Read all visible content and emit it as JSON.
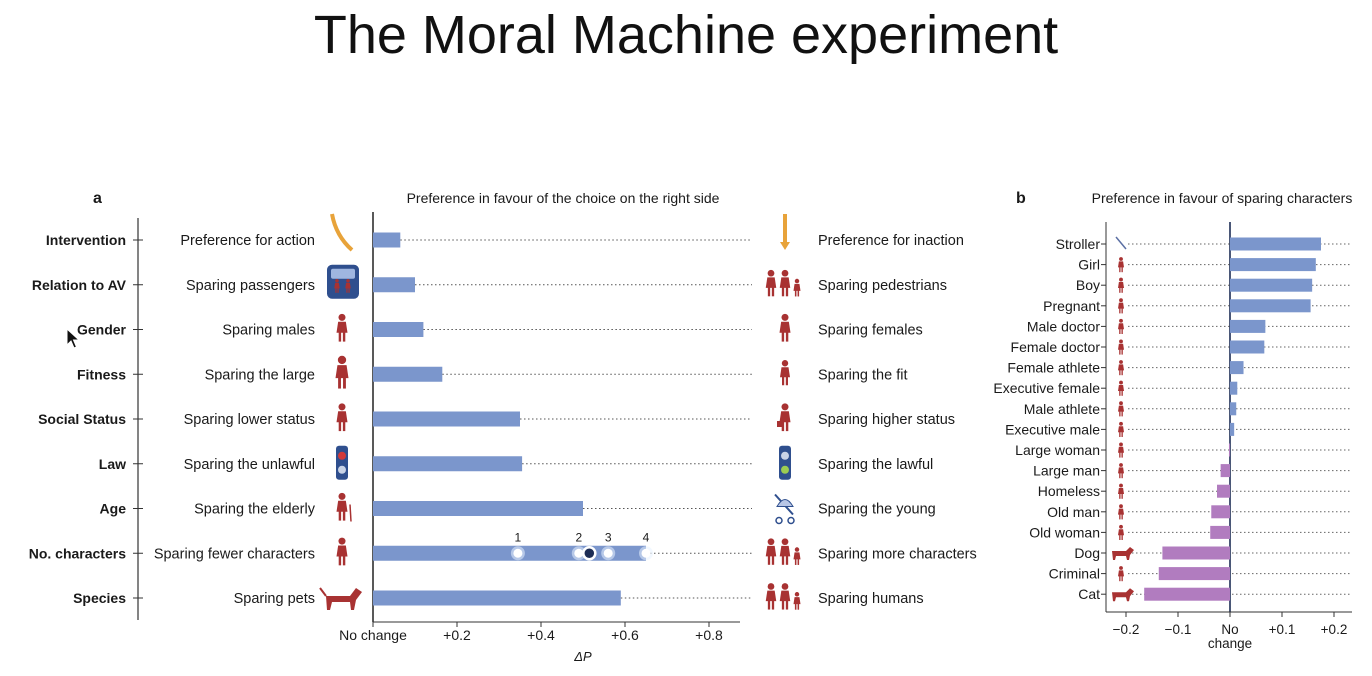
{
  "title": "The Moral Machine experiment",
  "chart_data": [
    {
      "type": "bar",
      "panel_label": "a",
      "title": "Preference in favour of the choice on the right side",
      "xlabel": "ΔP",
      "xlim": [
        0,
        0.9
      ],
      "ticks": [
        {
          "value": 0,
          "label": "No change"
        },
        {
          "value": 0.2,
          "label": "+0.2"
        },
        {
          "value": 0.4,
          "label": "+0.4"
        },
        {
          "value": 0.6,
          "label": "+0.6"
        },
        {
          "value": 0.8,
          "label": "+0.8"
        }
      ],
      "rows": [
        {
          "attribute": "Intervention",
          "left": "Preference for action",
          "right": "Preference for inaction",
          "value": 0.065
        },
        {
          "attribute": "Relation to AV",
          "left": "Sparing passengers",
          "right": "Sparing pedestrians",
          "value": 0.1
        },
        {
          "attribute": "Gender",
          "left": "Sparing males",
          "right": "Sparing females",
          "value": 0.12
        },
        {
          "attribute": "Fitness",
          "left": "Sparing the large",
          "right": "Sparing the fit",
          "value": 0.165
        },
        {
          "attribute": "Social Status",
          "left": "Sparing lower status",
          "right": "Sparing higher status",
          "value": 0.35
        },
        {
          "attribute": "Law",
          "left": "Sparing the unlawful",
          "right": "Sparing the lawful",
          "value": 0.355
        },
        {
          "attribute": "Age",
          "left": "Sparing the elderly",
          "right": "Sparing the young",
          "value": 0.5
        },
        {
          "attribute": "No. characters",
          "left": "Sparing fewer characters",
          "right": "Sparing more characters",
          "value": 0.65,
          "markers": [
            {
              "label": "1",
              "value": 0.345
            },
            {
              "label": "2",
              "value": 0.49
            },
            {
              "label": "",
              "value": 0.515
            },
            {
              "label": "3",
              "value": 0.56
            },
            {
              "label": "4",
              "value": 0.65
            }
          ]
        },
        {
          "attribute": "Species",
          "left": "Sparing pets",
          "right": "Sparing humans",
          "value": 0.59
        }
      ]
    },
    {
      "type": "bar",
      "panel_label": "b",
      "title": "Preference in favour of sparing characters",
      "xlim": [
        -0.22,
        0.22
      ],
      "ticks": [
        {
          "value": -0.2,
          "label": "−0.2"
        },
        {
          "value": -0.1,
          "label": "−0.1"
        },
        {
          "value": 0,
          "label": "No"
        },
        {
          "value": 0.1,
          "label": "+0.1"
        },
        {
          "value": 0.2,
          "label": "+0.2"
        }
      ],
      "zero_second_line": "change",
      "colors": {
        "positive": "#7b96cc",
        "negative": "#b17cbf"
      },
      "characters": [
        {
          "name": "Stroller",
          "value": 0.175
        },
        {
          "name": "Girl",
          "value": 0.165
        },
        {
          "name": "Boy",
          "value": 0.158
        },
        {
          "name": "Pregnant",
          "value": 0.155
        },
        {
          "name": "Male doctor",
          "value": 0.068
        },
        {
          "name": "Female doctor",
          "value": 0.066
        },
        {
          "name": "Female athlete",
          "value": 0.026
        },
        {
          "name": "Executive female",
          "value": 0.014
        },
        {
          "name": "Male athlete",
          "value": 0.012
        },
        {
          "name": "Executive male",
          "value": 0.008
        },
        {
          "name": "Large woman",
          "value": -0.002
        },
        {
          "name": "Large man",
          "value": -0.018
        },
        {
          "name": "Homeless",
          "value": -0.025
        },
        {
          "name": "Old man",
          "value": -0.036
        },
        {
          "name": "Old woman",
          "value": -0.038
        },
        {
          "name": "Dog",
          "value": -0.13
        },
        {
          "name": "Criminal",
          "value": -0.137
        },
        {
          "name": "Cat",
          "value": -0.165
        }
      ]
    }
  ]
}
